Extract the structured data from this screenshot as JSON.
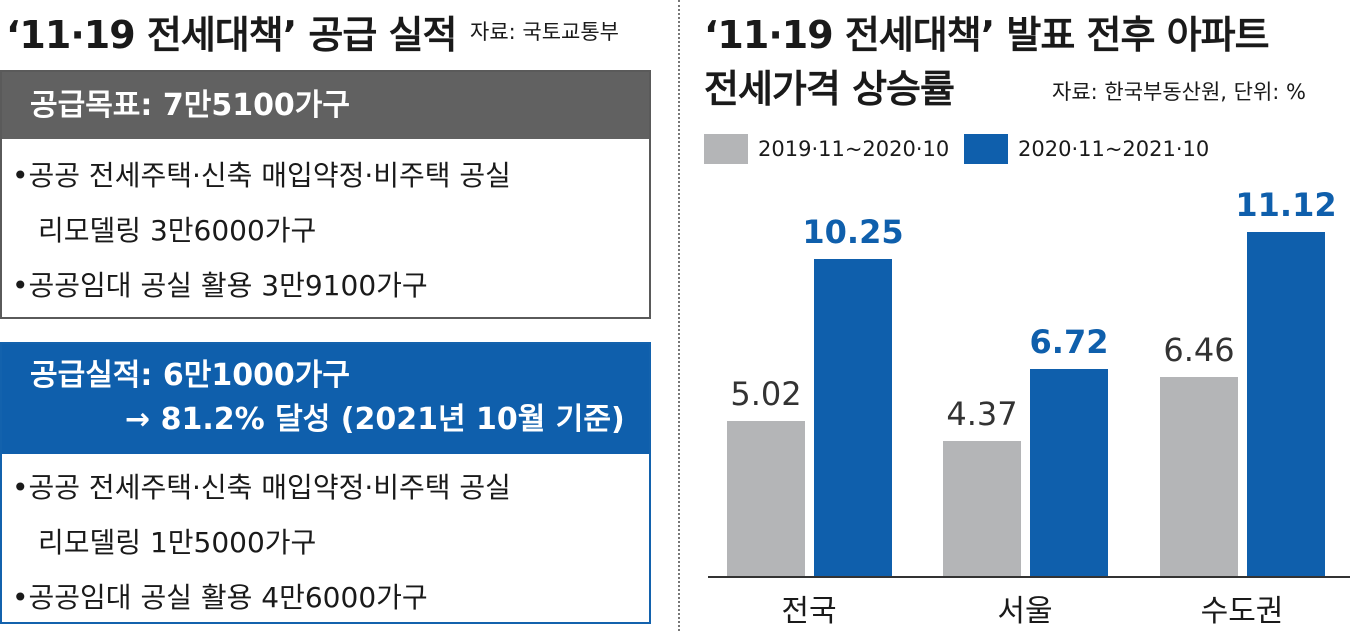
{
  "left": {
    "title": "‘11·19 전세대책’ 공급 실적",
    "source": "자료: 국토교통부",
    "target_box": {
      "header": "공급목표: 7만5100가구",
      "items": [
        {
          "line1": "•공공 전세주택·신축 매입약정·비주택 공실",
          "line2": "리모델링 3만6000가구"
        },
        {
          "line1": "•공공임대 공실 활용 3만9100가구"
        }
      ]
    },
    "result_box": {
      "header_line1": "공급실적: 6만1000가구",
      "header_line2": "→ 81.2% 달성 (2021년 10월 기준)",
      "items": [
        {
          "line1": "•공공 전세주택·신축 매입약정·비주택 공실",
          "line2": "리모델링 1만5000가구"
        },
        {
          "line1": "•공공임대 공실 활용 4만6000가구"
        }
      ]
    }
  },
  "chart_data": {
    "type": "bar",
    "title_line1": "‘11·19 전세대책’ 발표 전후 아파트",
    "title_line2": "전세가격 상승률",
    "source": "자료: 한국부동산원, 단위: %",
    "categories": [
      "전국",
      "서울",
      "수도권"
    ],
    "series": [
      {
        "name": "2019·11~2020·10",
        "color": "#b4b5b7",
        "values": [
          5.02,
          4.37,
          6.46
        ],
        "labels": [
          "5.02",
          "4.37",
          "6.46"
        ]
      },
      {
        "name": "2020·11~2021·10",
        "color": "#0f5fac",
        "values": [
          10.25,
          6.72,
          11.12
        ],
        "labels": [
          "10.25",
          "6.72",
          "11.12"
        ]
      }
    ],
    "ylim": [
      0,
      11.12
    ],
    "legend_position": "top-left",
    "grid": false
  },
  "colors": {
    "accent_blue": "#0f5fac",
    "gray_bar": "#b4b5b7",
    "header_gray": "#616161",
    "value_blue": "#0f5fac"
  }
}
